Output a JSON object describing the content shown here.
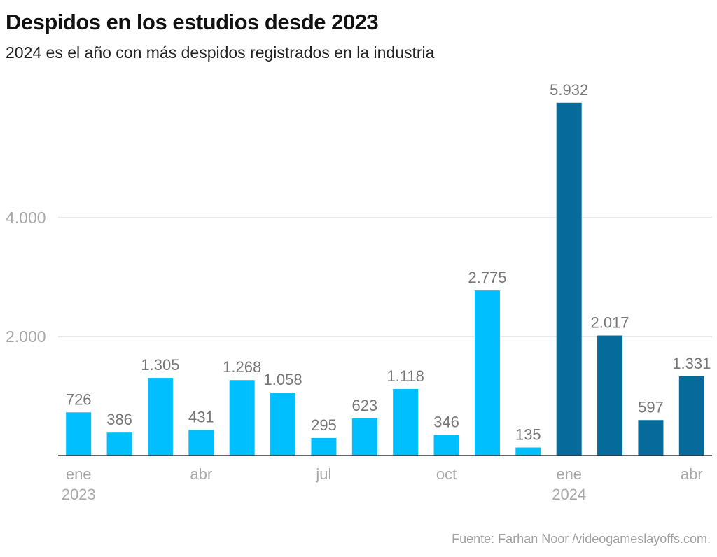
{
  "chart_data": {
    "type": "bar",
    "title": "Despidos en los estudios desde 2023",
    "subtitle": "2024 es el año con más despidos registrados en la industria",
    "source": "Fuente: Farhan Noor /videogameslayoffs.com.",
    "categories": [
      "ene 2023",
      "feb 2023",
      "mar 2023",
      "abr 2023",
      "may 2023",
      "jun 2023",
      "jul 2023",
      "ago 2023",
      "sep 2023",
      "oct 2023",
      "nov 2023",
      "dic 2023",
      "ene 2024",
      "feb 2024",
      "mar 2024",
      "abr 2024"
    ],
    "values": [
      726,
      386,
      1305,
      431,
      1268,
      1058,
      295,
      623,
      1118,
      346,
      2775,
      135,
      5932,
      2017,
      597,
      1331
    ],
    "value_labels": [
      "726",
      "386",
      "1.305",
      "431",
      "1.268",
      "1.058",
      "295",
      "623",
      "1.118",
      "346",
      "2.775",
      "135",
      "5.932",
      "2.017",
      "597",
      "1.331"
    ],
    "x_tick_labels": [
      {
        "index": 0,
        "lines": [
          "ene",
          "2023"
        ]
      },
      {
        "index": 3,
        "lines": [
          "abr"
        ]
      },
      {
        "index": 6,
        "lines": [
          "jul"
        ]
      },
      {
        "index": 9,
        "lines": [
          "oct"
        ]
      },
      {
        "index": 12,
        "lines": [
          "ene",
          "2024"
        ]
      },
      {
        "index": 15,
        "lines": [
          "abr"
        ]
      }
    ],
    "y_ticks": [
      {
        "value": 2000,
        "label": "2.000"
      },
      {
        "value": 4000,
        "label": "4.000"
      }
    ],
    "ylim": [
      0,
      6000
    ],
    "grid": true,
    "colors": {
      "2023": "#00BFFF",
      "2024": "#066A9B"
    },
    "xlabel": "",
    "ylabel": ""
  }
}
